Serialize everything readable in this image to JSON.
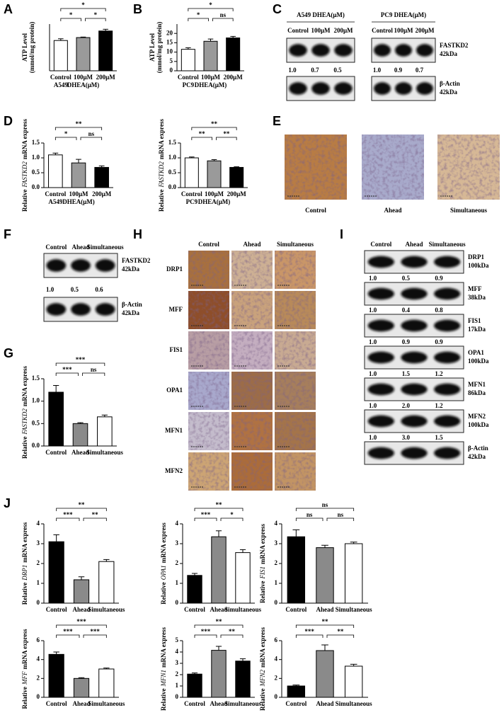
{
  "panel_labels": [
    "A",
    "B",
    "C",
    "D",
    "E",
    "F",
    "G",
    "H",
    "I",
    "J"
  ],
  "chart_data": [
    {
      "type": "bar",
      "ylabel": [
        "ATP Level",
        "(mmol/mg protein)"
      ],
      "categories": [
        "Control",
        "100μM",
        "200μM"
      ],
      "xlabel": [
        "A549",
        "DHEA(μM)"
      ],
      "values": [
        17.5,
        19.2,
        23
      ],
      "errors": [
        1,
        0.3,
        1
      ],
      "colors": [
        "#ffffff",
        "#9a9a9a",
        "#000000"
      ],
      "ylim": [
        0,
        27
      ],
      "significance": [
        {
          "from": 0,
          "to": 2,
          "label": "*"
        },
        {
          "from": 0,
          "to": 1,
          "label": "*"
        },
        {
          "from": 1,
          "to": 2,
          "label": "*"
        }
      ]
    },
    {
      "type": "bar",
      "ylabel": [
        "ATP Level",
        "(mmol/mg protein)"
      ],
      "categories": [
        "Control",
        "100μM",
        "200μM"
      ],
      "xlabel": [
        "PC9",
        "DHEA(μM)"
      ],
      "values": [
        11.5,
        15.8,
        17.6
      ],
      "errors": [
        0.8,
        1.2,
        0.8
      ],
      "colors": [
        "#ffffff",
        "#9a9a9a",
        "#000000"
      ],
      "ylim": [
        0,
        25
      ],
      "yticks": [
        0,
        5,
        10,
        15,
        20
      ],
      "significance": [
        {
          "from": 0,
          "to": 2,
          "label": "*"
        },
        {
          "from": 0,
          "to": 1,
          "label": "*"
        },
        {
          "from": 1,
          "to": 2,
          "label": "ns"
        }
      ]
    },
    {
      "type": "bar",
      "ylabel": {
        "prefix": "Relative",
        "gene": "FASTKD2",
        "suffix": "mRNA express"
      },
      "categories": [
        "Control",
        "100μM",
        "200μM"
      ],
      "xlabel": [
        "A549",
        "DHEA(μM)"
      ],
      "values": [
        1.1,
        0.83,
        0.68
      ],
      "errors": [
        0.06,
        0.12,
        0.05
      ],
      "colors": [
        "#ffffff",
        "#9a9a9a",
        "#000000"
      ],
      "ylim": [
        0,
        1.5
      ],
      "yticks": [
        {
          "value": 0,
          "label": "0.0"
        },
        {
          "value": 0.5,
          "label": "0.5"
        },
        {
          "value": 1,
          "label": "1.0"
        },
        {
          "value": 1.5,
          "label": "1.5"
        }
      ],
      "significance": [
        {
          "from": 0,
          "to": 2,
          "label": "**"
        },
        {
          "from": 0,
          "to": 1,
          "label": "*"
        },
        {
          "from": 1,
          "to": 2,
          "label": "ns"
        }
      ]
    },
    {
      "type": "bar",
      "ylabel": {
        "prefix": "Relative",
        "gene": "FASTKD2",
        "suffix": "mRNA express"
      },
      "categories": [
        "Control",
        "100μM",
        "200μM"
      ],
      "xlabel": [
        "PC9",
        "DHEA(μM)"
      ],
      "values": [
        1.0,
        0.9,
        0.68
      ],
      "errors": [
        0.03,
        0.04,
        0.02
      ],
      "colors": [
        "#ffffff",
        "#9a9a9a",
        "#000000"
      ],
      "ylim": [
        0,
        1.5
      ],
      "yticks": [
        {
          "value": 0,
          "label": "0.0"
        },
        {
          "value": 0.5,
          "label": "0.5"
        },
        {
          "value": 1,
          "label": "1.0"
        },
        {
          "value": 1.5,
          "label": "1.5"
        }
      ],
      "significance": [
        {
          "from": 0,
          "to": 2,
          "label": "**"
        },
        {
          "from": 0,
          "to": 1,
          "label": "**"
        },
        {
          "from": 1,
          "to": 2,
          "label": "**"
        }
      ]
    },
    {
      "type": "bar",
      "ylabel": {
        "prefix": "Relative",
        "gene": "FASTKD2",
        "suffix": "mRNA express"
      },
      "categories": [
        "Control",
        "Ahead",
        "Simultaneous"
      ],
      "values": [
        1.2,
        0.5,
        0.65
      ],
      "errors": [
        0.15,
        0.02,
        0.04
      ],
      "colors": [
        "#000000",
        "#8a8a8a",
        "#ffffff"
      ],
      "ylim": [
        0,
        1.5
      ],
      "yticks": [
        {
          "value": 0,
          "label": "0.0"
        },
        {
          "value": 0.5,
          "label": "0.5"
        },
        {
          "value": 1,
          "label": "1.0"
        },
        {
          "value": 1.5,
          "label": "1.5"
        }
      ],
      "significance": [
        {
          "from": 0,
          "to": 2,
          "label": "***"
        },
        {
          "from": 0,
          "to": 1,
          "label": "***"
        },
        {
          "from": 1,
          "to": 2,
          "label": "ns"
        }
      ]
    },
    {
      "type": "bar",
      "ylabel": {
        "prefix": "Relative",
        "gene": "DRP1",
        "suffix": "mRNA express"
      },
      "categories": [
        "Control",
        "Ahead",
        "Simultaneous"
      ],
      "values": [
        3.1,
        1.18,
        2.1
      ],
      "errors": [
        0.35,
        0.15,
        0.1
      ],
      "colors": [
        "#000000",
        "#8a8a8a",
        "#ffffff"
      ],
      "ylim": [
        0,
        4
      ],
      "yticks": [
        0,
        1,
        2,
        3,
        4
      ],
      "significance": [
        {
          "from": 0,
          "to": 2,
          "label": "**"
        },
        {
          "from": 0,
          "to": 1,
          "label": "***"
        },
        {
          "from": 1,
          "to": 2,
          "label": "**"
        }
      ]
    },
    {
      "type": "bar",
      "ylabel": {
        "prefix": "Relative",
        "gene": "OPA1",
        "suffix": "mRNA express"
      },
      "categories": [
        "Control",
        "Ahead",
        "Simultaneous"
      ],
      "values": [
        1.4,
        3.35,
        2.55
      ],
      "errors": [
        0.1,
        0.3,
        0.15
      ],
      "colors": [
        "#000000",
        "#8a8a8a",
        "#ffffff"
      ],
      "ylim": [
        0,
        4
      ],
      "yticks": [
        0,
        1,
        2,
        3,
        4
      ],
      "significance": [
        {
          "from": 0,
          "to": 2,
          "label": "**"
        },
        {
          "from": 0,
          "to": 1,
          "label": "***"
        },
        {
          "from": 1,
          "to": 2,
          "label": "*"
        }
      ]
    },
    {
      "type": "bar",
      "ylabel": {
        "prefix": "Relative",
        "gene": "FIS1",
        "suffix": "mRNA express"
      },
      "categories": [
        "Control",
        "Ahead",
        "Simultaneous"
      ],
      "values": [
        3.35,
        2.8,
        3.0
      ],
      "errors": [
        0.35,
        0.12,
        0.08
      ],
      "colors": [
        "#000000",
        "#8a8a8a",
        "#ffffff"
      ],
      "ylim": [
        0,
        4
      ],
      "yticks": [
        0,
        1,
        2,
        3,
        4
      ],
      "significance": [
        {
          "from": 0,
          "to": 2,
          "label": "ns"
        },
        {
          "from": 0,
          "to": 1,
          "label": "ns"
        },
        {
          "from": 1,
          "to": 2,
          "label": "ns"
        }
      ]
    },
    {
      "type": "bar",
      "ylabel": {
        "prefix": "Relative",
        "gene": "MFF",
        "suffix": "mRNA express"
      },
      "categories": [
        "Control",
        "Ahead",
        "Simultaneous"
      ],
      "values": [
        4.55,
        2.0,
        3.0
      ],
      "errors": [
        0.25,
        0.08,
        0.1
      ],
      "colors": [
        "#000000",
        "#8a8a8a",
        "#ffffff"
      ],
      "ylim": [
        0,
        6
      ],
      "yticks": [
        0,
        2,
        4,
        6
      ],
      "significance": [
        {
          "from": 0,
          "to": 2,
          "label": "***"
        },
        {
          "from": 0,
          "to": 1,
          "label": "***"
        },
        {
          "from": 1,
          "to": 2,
          "label": "***"
        }
      ]
    },
    {
      "type": "bar",
      "ylabel": {
        "prefix": "Relative",
        "gene": "MFN1",
        "suffix": "mRNA express"
      },
      "categories": [
        "Control",
        "Ahead",
        "Simultaneous"
      ],
      "values": [
        2.05,
        4.15,
        3.2
      ],
      "errors": [
        0.1,
        0.35,
        0.2
      ],
      "colors": [
        "#000000",
        "#8a8a8a",
        "#000000"
      ],
      "ylim": [
        0,
        5
      ],
      "yticks": [
        0,
        1,
        2,
        3,
        4,
        5
      ],
      "significance": [
        {
          "from": 0,
          "to": 2,
          "label": "**"
        },
        {
          "from": 0,
          "to": 1,
          "label": "***"
        },
        {
          "from": 1,
          "to": 2,
          "label": "**"
        }
      ]
    },
    {
      "type": "bar",
      "ylabel": {
        "prefix": "Relative",
        "gene": "MFN2",
        "suffix": "mRNA express"
      },
      "categories": [
        "Control",
        "Ahead",
        "Simultaneous"
      ],
      "values": [
        1.2,
        4.95,
        3.3
      ],
      "errors": [
        0.1,
        0.6,
        0.2
      ],
      "colors": [
        "#000000",
        "#8a8a8a",
        "#ffffff"
      ],
      "ylim": [
        0,
        6
      ],
      "yticks": [
        0,
        2,
        4,
        6
      ],
      "significance": [
        {
          "from": 0,
          "to": 2,
          "label": "**"
        },
        {
          "from": 0,
          "to": 1,
          "label": "***"
        },
        {
          "from": 1,
          "to": 2,
          "label": "**"
        }
      ]
    }
  ],
  "blots": [
    {
      "header": "A549  DHEA(μM)",
      "lanes": [
        "Control",
        "100μM",
        "200μM"
      ],
      "rows": [
        {
          "ratios": [
            "1.0",
            "0.7",
            "0.5"
          ]
        },
        {}
      ]
    },
    {
      "header": "PC9  DHEA(μM)",
      "lanes": [
        "Control",
        "100μM",
        "200μM"
      ],
      "rows": [
        {
          "name": "FASTKD2",
          "size": "42kDa",
          "ratios": [
            "1.0",
            "0.9",
            "0.7"
          ]
        },
        {
          "name": "β-Actin",
          "size": "42kDa"
        }
      ]
    },
    {
      "lanes": [
        "Control",
        "Ahead",
        "Simultaneous"
      ],
      "rows": [
        {
          "name": "FASTKD2",
          "size": "42kDa",
          "ratios": [
            "1.0",
            "0.5",
            "0.6"
          ]
        },
        {
          "name": "β-Actin",
          "size": "42kDa"
        }
      ]
    },
    {
      "lanes": [
        "Control",
        "Ahead",
        "Simultaneous"
      ],
      "rows": [
        {
          "name": "DRP1",
          "size": "100kDa",
          "ratios": [
            "1.0",
            "0.5",
            "0.9"
          ]
        },
        {
          "name": "MFF",
          "size": "38kDa",
          "ratios": [
            "1.0",
            "0.4",
            "0.8"
          ]
        },
        {
          "name": "FIS1",
          "size": "17kDa",
          "ratios": [
            "1.0",
            "0.9",
            "0.9"
          ]
        },
        {
          "name": "OPA1",
          "size": "100kDa",
          "ratios": [
            "1.0",
            "1.5",
            "1.2"
          ]
        },
        {
          "name": "MFN1",
          "size": "86kDa",
          "ratios": [
            "1.0",
            "2.0",
            "1.2"
          ]
        },
        {
          "name": "MFN2",
          "size": "100kDa",
          "ratios": [
            "1.0",
            "3.0",
            "1.5"
          ]
        },
        {
          "name": "β-Actin",
          "size": "42kDa"
        }
      ]
    }
  ],
  "ihc_E": {
    "labels": [
      "Control",
      "Ahead",
      "Simultaneous"
    ]
  },
  "ihc_H": {
    "columns": [
      "Control",
      "Ahead",
      "Simultaneous"
    ],
    "rows": [
      "DRP1",
      "MFF",
      "FIS1",
      "OPA1",
      "MFN1",
      "MFN2"
    ]
  }
}
